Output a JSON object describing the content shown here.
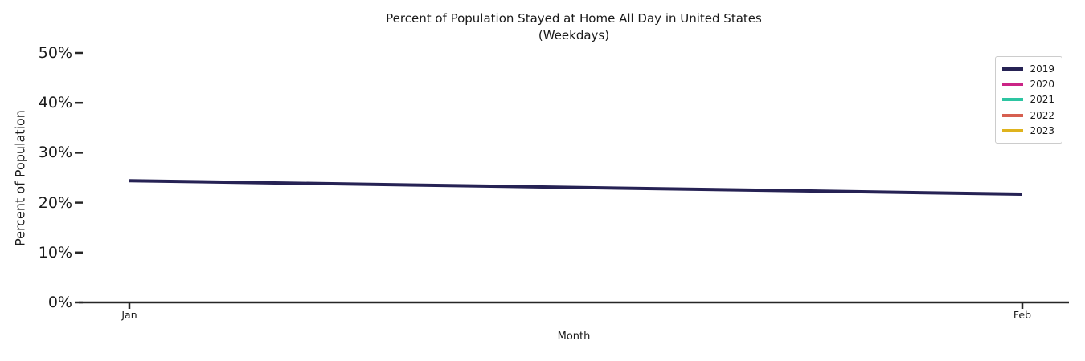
{
  "chart_data": {
    "type": "line",
    "title": "Percent of Population Stayed at Home All Day in United States",
    "subtitle": "(Weekdays)",
    "xlabel": "Month",
    "ylabel": "Percent of Population",
    "categories": [
      "Jan",
      "Feb"
    ],
    "y_tick_labels": [
      "0%",
      "10%",
      "20%",
      "30%",
      "40%",
      "50%"
    ],
    "y_tick_values": [
      0,
      10,
      20,
      30,
      40,
      50
    ],
    "ylim": [
      0,
      50
    ],
    "grid": false,
    "legend_position": "upper right",
    "axis_color": "#262626",
    "series": [
      {
        "name": "2019",
        "color": "#262254",
        "values": [
          24.4,
          21.7
        ]
      },
      {
        "name": "2020",
        "color": "#cb2486",
        "values": [
          null,
          null
        ]
      },
      {
        "name": "2021",
        "color": "#2dc5a2",
        "values": [
          null,
          null
        ]
      },
      {
        "name": "2022",
        "color": "#d65f50",
        "values": [
          null,
          null
        ]
      },
      {
        "name": "2023",
        "color": "#dfb31d",
        "values": [
          null,
          null
        ]
      }
    ]
  }
}
